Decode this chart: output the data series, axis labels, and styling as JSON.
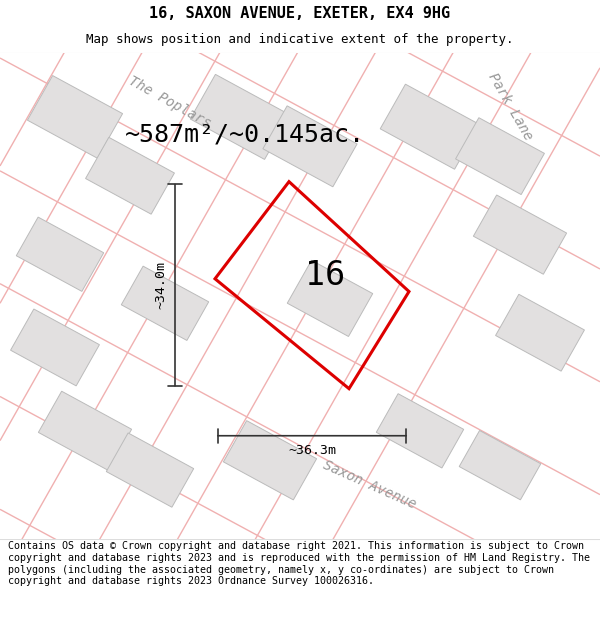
{
  "title_line1": "16, SAXON AVENUE, EXETER, EX4 9HG",
  "title_line2": "Map shows position and indicative extent of the property.",
  "footer_text": "Contains OS data © Crown copyright and database right 2021. This information is subject to Crown copyright and database rights 2023 and is reproduced with the permission of HM Land Registry. The polygons (including the associated geometry, namely x, y co-ordinates) are subject to Crown copyright and database rights 2023 Ordnance Survey 100026316.",
  "area_label": "~587m²/~0.145ac.",
  "number_label": "16",
  "dim_height": "~34.0m",
  "dim_width": "~36.3m",
  "street_labels": [
    "The Poplars",
    "Park Lane",
    "Saxon Avenue"
  ],
  "map_bg": "#ffffff",
  "plot_outline_color": "#dd0000",
  "neighbor_fill": "#e2e0e0",
  "neighbor_outline": "#bbbbbb",
  "road_line_color": "#f0b0b0",
  "road_border_color": "#e8c8c8",
  "title_fontsize": 11,
  "subtitle_fontsize": 9,
  "footer_fontsize": 7.2,
  "area_fontsize": 18,
  "number_fontsize": 24,
  "dim_fontsize": 9.5,
  "street_fontsize": 10
}
